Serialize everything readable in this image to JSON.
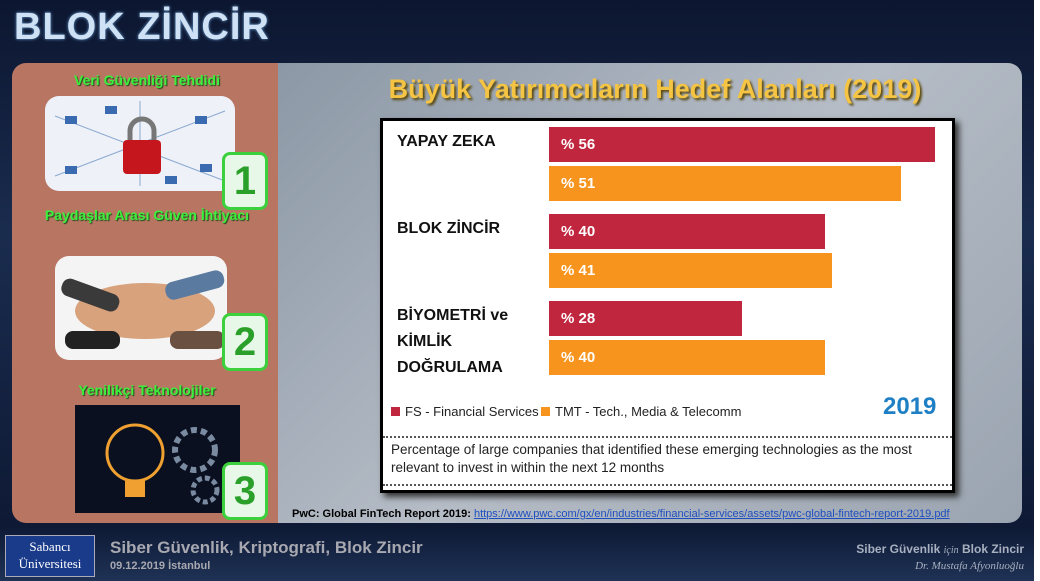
{
  "header": {
    "title": "BLOK ZİNCİR"
  },
  "sidebar": {
    "items": [
      {
        "label": "Veri Güvenliği Tehdidi",
        "number": "1"
      },
      {
        "label": "Paydaşlar Arası Güven İhtiyacı",
        "number": "2"
      },
      {
        "label": "Yenilikçi Teknolojiler",
        "number": "3"
      }
    ]
  },
  "slide_title": "Büyük Yatırımcıların Hedef Alanları (2019)",
  "chart_data": {
    "type": "bar",
    "orientation": "horizontal",
    "categories": [
      "YAPAY ZEKA",
      "BLOK ZİNCİR",
      "BİYOMETRİ ve KİMLİK DOĞRULAMA"
    ],
    "series": [
      {
        "name": "FS - Financial Services",
        "color": "#c0263d",
        "values": [
          56,
          40,
          28
        ],
        "value_labels": [
          "% 56",
          "% 40",
          "% 28"
        ]
      },
      {
        "name": "TMT - Tech., Media & Telecomm",
        "color": "#f7941d",
        "values": [
          51,
          41,
          40
        ],
        "value_labels": [
          "% 51",
          "% 41",
          "% 40"
        ]
      }
    ],
    "legend": "bottom-left",
    "year_label": "2019",
    "note": "Percentage of large companies that identified these emerging technologies as the most relevant to invest in within the next 12 months"
  },
  "source": {
    "label": "PwC: Global FinTech Report 2019:",
    "url": "https://www.pwc.com/gx/en/industries/financial-services/assets/pwc-global-fintech-report-2019.pdf"
  },
  "footer": {
    "logo": [
      "Sabancı",
      "Üniversitesi"
    ],
    "course": "Siber Güvenlik, Kriptografi, Blok Zincir",
    "date": "09.12.2019 İstanbul",
    "right_title": [
      "Siber Güvenlik",
      "için",
      "Blok Zincir"
    ],
    "author": "Dr. Mustafa Afyonluoğlu"
  }
}
